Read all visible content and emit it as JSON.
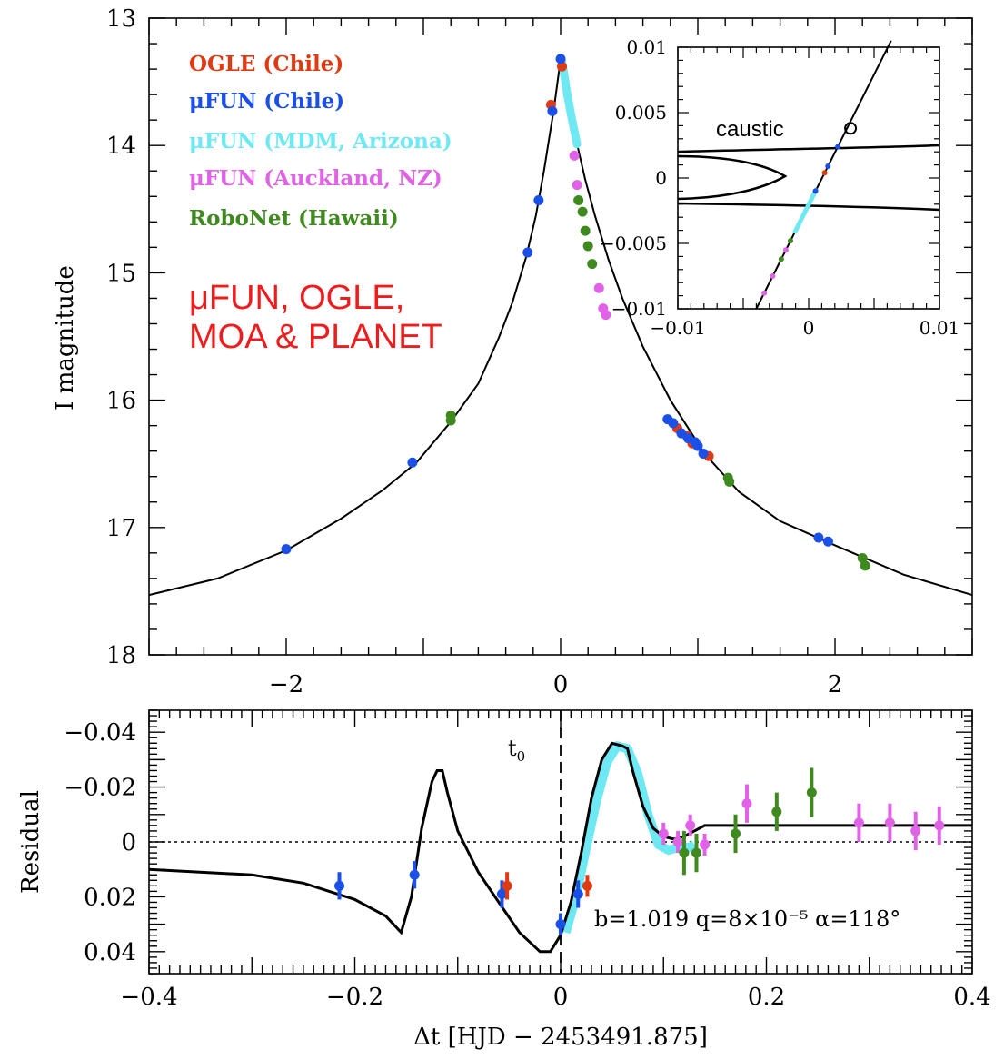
{
  "chart_data": [
    {
      "type": "line",
      "panel": "main",
      "ylabel": "I magnitude",
      "xlim": [
        -3,
        3
      ],
      "ylim": [
        18,
        13
      ],
      "y_inverted": true,
      "xticks": [
        "−2",
        "0",
        "2"
      ],
      "xtick_values": [
        -2,
        0,
        2
      ],
      "yticks": [
        "13",
        "14",
        "15",
        "16",
        "17",
        "18"
      ],
      "ytick_values": [
        13,
        14,
        15,
        16,
        17,
        18
      ],
      "legend": [
        {
          "label": "OGLE (Chile)",
          "color": "#e03a12"
        },
        {
          "label": "μFUN (Chile)",
          "color": "#1a4fe8"
        },
        {
          "label": "μFUN (MDM, Arizona)",
          "color": "#6ee8f2"
        },
        {
          "label": "μFUN (Auckland, NZ)",
          "color": "#e062e6"
        },
        {
          "label": "RoboNet (Hawaii)",
          "color": "#3e8a1e"
        }
      ],
      "legend_placement": "top-left",
      "annotation_lines": [
        "μFUN, OGLE,",
        "MOA & PLANET"
      ],
      "model_curve": {
        "x": [
          -3,
          -2.5,
          -2,
          -1.6,
          -1.3,
          -1.05,
          -0.8,
          -0.6,
          -0.45,
          -0.35,
          -0.25,
          -0.18,
          -0.12,
          -0.08,
          -0.05,
          -0.03,
          -0.01,
          0,
          0.01,
          0.03,
          0.05,
          0.08,
          0.12,
          0.18,
          0.25,
          0.35,
          0.45,
          0.6,
          0.8,
          1.05,
          1.3,
          1.6,
          2.0,
          2.5,
          3
        ],
        "y": [
          17.53,
          17.4,
          17.18,
          16.93,
          16.71,
          16.49,
          16.17,
          15.87,
          15.51,
          15.23,
          14.87,
          14.55,
          14.19,
          13.92,
          13.72,
          13.56,
          13.4,
          13.31,
          13.34,
          13.47,
          13.61,
          13.78,
          13.99,
          14.27,
          14.55,
          14.9,
          15.2,
          15.58,
          16.0,
          16.42,
          16.72,
          16.95,
          17.14,
          17.37,
          17.53
        ]
      },
      "series": [
        {
          "name": "OGLE (Chile)",
          "color": "#e03a12",
          "points": [
            [
              -0.07,
              13.68
            ],
            [
              0.01,
              13.38
            ],
            [
              0.85,
              16.22
            ],
            [
              0.92,
              16.28
            ],
            [
              0.96,
              16.34
            ],
            [
              1.08,
              16.44
            ]
          ]
        },
        {
          "name": "μFUN (Chile)",
          "color": "#1a4fe8",
          "points": [
            [
              -2.0,
              17.17
            ],
            [
              -1.08,
              16.49
            ],
            [
              -0.24,
              14.84
            ],
            [
              -0.16,
              14.43
            ],
            [
              -0.06,
              13.73
            ],
            [
              0.0,
              13.32
            ],
            [
              0.78,
              16.15
            ],
            [
              0.82,
              16.18
            ],
            [
              0.88,
              16.26
            ],
            [
              0.93,
              16.3
            ],
            [
              0.98,
              16.33
            ],
            [
              1.0,
              16.36
            ],
            [
              1.04,
              16.42
            ],
            [
              1.88,
              17.08
            ],
            [
              1.95,
              17.11
            ]
          ]
        },
        {
          "name": "μFUN (MDM, Arizona)",
          "color": "#6ee8f2",
          "x_range": [
            0.0,
            0.12
          ],
          "note": "dense continuous coverage"
        },
        {
          "name": "μFUN (Auckland, NZ)",
          "color": "#e062e6",
          "points": [
            [
              0.1,
              14.08
            ],
            [
              0.12,
              14.31
            ],
            [
              0.28,
              15.12
            ],
            [
              0.31,
              15.28
            ],
            [
              0.33,
              15.33
            ]
          ]
        },
        {
          "name": "RoboNet (Hawaii)",
          "color": "#3e8a1e",
          "points": [
            [
              -0.8,
              16.12
            ],
            [
              -0.8,
              16.16
            ],
            [
              0.13,
              14.43
            ],
            [
              0.16,
              14.52
            ],
            [
              0.18,
              14.67
            ],
            [
              0.2,
              14.79
            ],
            [
              0.23,
              14.93
            ],
            [
              1.22,
              16.61
            ],
            [
              1.23,
              16.64
            ],
            [
              2.2,
              17.24
            ],
            [
              2.22,
              17.3
            ]
          ]
        }
      ]
    },
    {
      "type": "line",
      "panel": "inset",
      "xlim": [
        -0.01,
        0.01
      ],
      "ylim": [
        -0.01,
        0.01
      ],
      "xticks": [
        "−0.01",
        "0",
        "0.01"
      ],
      "xtick_values": [
        -0.01,
        0,
        0.01
      ],
      "yticks": [
        "0.01",
        "0.005",
        "0",
        "−0.005",
        "−0.01"
      ],
      "ytick_values": [
        0.01,
        0.005,
        0,
        -0.005,
        -0.01
      ],
      "annotation": "caustic",
      "trajectory": {
        "x": [
          -0.004,
          0.0063
        ],
        "y": [
          -0.01,
          0.0105
        ]
      },
      "source_circle": [
        0.0032,
        0.0038
      ]
    },
    {
      "type": "scatter",
      "panel": "residual",
      "xlabel_parts": [
        "Δt [HJD − 2453491.875]"
      ],
      "ylabel": "Residual",
      "xlim": [
        -0.4,
        0.4
      ],
      "ylim": [
        0.048,
        -0.048
      ],
      "xticks": [
        "−0.4",
        "−0.2",
        "0",
        "0.2",
        "0.4"
      ],
      "xtick_values": [
        -0.4,
        -0.2,
        0,
        0.2,
        0.4
      ],
      "yticks": [
        "−0.04",
        "−0.02",
        "0",
        "0.02",
        "0.04"
      ],
      "ytick_values": [
        -0.04,
        -0.02,
        0,
        0.02,
        0.04
      ],
      "t0_label": "t",
      "t0_subscript": "0",
      "params_label": "b=1.019   q=8×10⁻⁵   α=118°",
      "model_curve": {
        "x": [
          -0.4,
          -0.3,
          -0.25,
          -0.2,
          -0.17,
          -0.155,
          -0.145,
          -0.135,
          -0.125,
          -0.12,
          -0.115,
          -0.11,
          -0.1,
          -0.08,
          -0.06,
          -0.04,
          -0.02,
          -0.01,
          0.0,
          0.01,
          0.02,
          0.03,
          0.04,
          0.05,
          0.06,
          0.065,
          0.07,
          0.08,
          0.09,
          0.1,
          0.11,
          0.12,
          0.13,
          0.14,
          0.16,
          0.2,
          0.3,
          0.4
        ],
        "y": [
          0.01,
          0.012,
          0.015,
          0.021,
          0.027,
          0.033,
          0.02,
          -0.005,
          -0.022,
          -0.026,
          -0.026,
          -0.018,
          -0.004,
          0.011,
          0.022,
          0.033,
          0.04,
          0.04,
          0.034,
          0.022,
          0.004,
          -0.016,
          -0.03,
          -0.036,
          -0.035,
          -0.034,
          -0.026,
          -0.013,
          -0.005,
          -0.002,
          -0.001,
          -0.002,
          -0.004,
          -0.006,
          -0.006,
          -0.006,
          -0.006,
          -0.006
        ]
      },
      "mdm_band": {
        "x": [
          0.005,
          0.015,
          0.025,
          0.035,
          0.045,
          0.055,
          0.065,
          0.075,
          0.085,
          0.095,
          0.105,
          0.115,
          0.125,
          0.13
        ],
        "y": [
          0.033,
          0.02,
          0.002,
          -0.015,
          -0.029,
          -0.035,
          -0.034,
          -0.025,
          -0.01,
          0.001,
          0.003,
          0.002,
          0.002,
          0.001
        ]
      },
      "series": [
        {
          "name": "μFUN (Chile)",
          "color": "#1a4fe8",
          "points": [
            [
              -0.215,
              0.016,
              0.005
            ],
            [
              -0.142,
              0.012,
              0.005
            ],
            [
              -0.057,
              0.019,
              0.005
            ],
            [
              0.017,
              0.019,
              0.005
            ],
            [
              0.0,
              0.03,
              0.004
            ]
          ]
        },
        {
          "name": "OGLE (Chile)",
          "color": "#e03a12",
          "points": [
            [
              -0.052,
              0.016,
              0.005
            ],
            [
              0.026,
              0.016,
              0.004
            ]
          ]
        },
        {
          "name": "μFUN (Auckland, NZ)",
          "color": "#e062e6",
          "points": [
            [
              0.1,
              -0.003,
              0.004
            ],
            [
              0.114,
              0.0,
              0.004
            ],
            [
              0.126,
              -0.006,
              0.004
            ],
            [
              0.14,
              0.001,
              0.004
            ],
            [
              0.181,
              -0.014,
              0.007
            ],
            [
              0.29,
              -0.007,
              0.007
            ],
            [
              0.32,
              -0.007,
              0.007
            ],
            [
              0.345,
              -0.004,
              0.007
            ],
            [
              0.368,
              -0.006,
              0.007
            ]
          ]
        },
        {
          "name": "RoboNet (Hawaii)",
          "color": "#3e8a1e",
          "points": [
            [
              0.12,
              0.004,
              0.008
            ],
            [
              0.132,
              0.004,
              0.007
            ],
            [
              0.17,
              -0.003,
              0.007
            ],
            [
              0.21,
              -0.011,
              0.007
            ],
            [
              0.244,
              -0.018,
              0.009
            ]
          ]
        }
      ]
    }
  ]
}
